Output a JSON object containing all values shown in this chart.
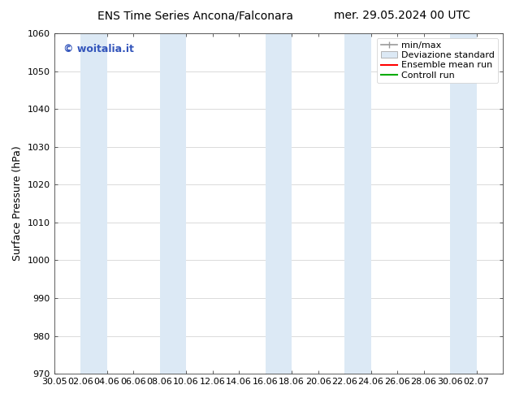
{
  "title_left": "ENS Time Series Ancona/Falconara",
  "title_right": "mer. 29.05.2024 00 UTC",
  "ylabel": "Surface Pressure (hPa)",
  "ylim": [
    970,
    1060
  ],
  "yticks": [
    970,
    980,
    990,
    1000,
    1010,
    1020,
    1030,
    1040,
    1050,
    1060
  ],
  "xlim_start": 0,
  "xlim_end": 34,
  "xtick_labels": [
    "30.05",
    "02.06",
    "04.06",
    "06.06",
    "08.06",
    "10.06",
    "12.06",
    "14.06",
    "16.06",
    "18.06",
    "20.06",
    "22.06",
    "24.06",
    "26.06",
    "28.06",
    "30.06",
    "02.07"
  ],
  "xtick_positions": [
    0,
    2,
    4,
    6,
    8,
    10,
    12,
    14,
    16,
    18,
    20,
    22,
    24,
    26,
    28,
    30,
    32
  ],
  "background_color": "#ffffff",
  "plot_bg_color": "#ffffff",
  "shaded_bands": [
    {
      "x_start": 2,
      "x_end": 4,
      "color": "#dce9f5"
    },
    {
      "x_start": 8,
      "x_end": 10,
      "color": "#dce9f5"
    },
    {
      "x_start": 16,
      "x_end": 18,
      "color": "#dce9f5"
    },
    {
      "x_start": 22,
      "x_end": 24,
      "color": "#dce9f5"
    },
    {
      "x_start": 30,
      "x_end": 32,
      "color": "#dce9f5"
    }
  ],
  "watermark_text": "© woitalia.it",
  "watermark_color": "#3355bb",
  "legend_labels": [
    "min/max",
    "Deviazione standard",
    "Ensemble mean run",
    "Controll run"
  ],
  "minmax_color": "#999999",
  "dev_std_color": "#dce9f5",
  "dev_std_edge": "#aaaaaa",
  "ens_mean_color": "#ff0000",
  "ctrl_run_color": "#00aa00",
  "title_fontsize": 10,
  "ylabel_fontsize": 9,
  "tick_fontsize": 8,
  "legend_fontsize": 8,
  "watermark_fontsize": 9
}
